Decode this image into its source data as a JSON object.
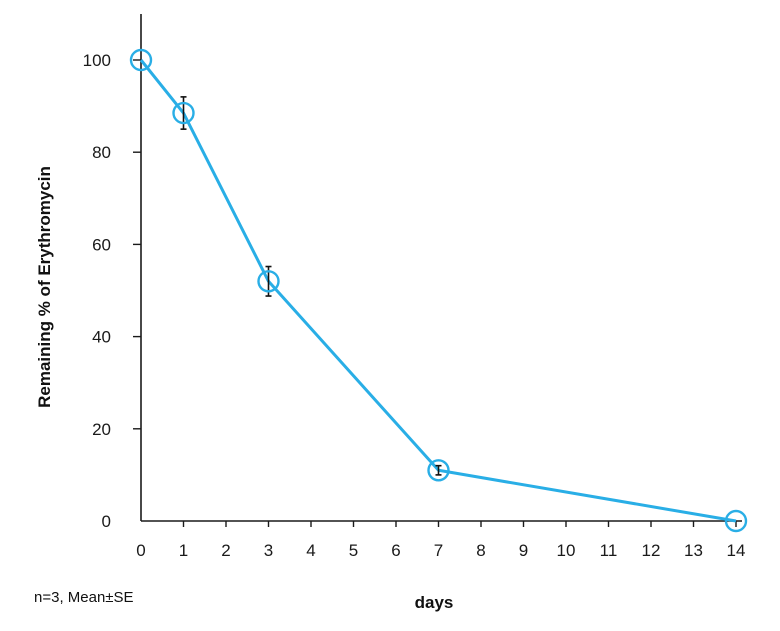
{
  "chart_data": {
    "type": "line",
    "title": "",
    "xlabel": "days",
    "ylabel": "Remaining % of Erythromycin",
    "note": "n=3, Mean±SE",
    "x_ticks": [
      0,
      1,
      2,
      3,
      4,
      5,
      6,
      7,
      8,
      9,
      10,
      11,
      12,
      13,
      14
    ],
    "x_tick_labels": [
      "0",
      "1",
      "2",
      "3",
      "4",
      "5",
      "6",
      "7",
      "8",
      "9",
      "10",
      "11",
      "12",
      "13",
      "14"
    ],
    "y_ticks": [
      0,
      20,
      40,
      60,
      80,
      100
    ],
    "y_tick_labels": [
      "0",
      "20",
      "40",
      "60",
      "80",
      "100"
    ],
    "xlim": [
      0,
      14
    ],
    "ylim": [
      0,
      110
    ],
    "grid": false,
    "series": [
      {
        "name": "Erythromycin",
        "color": "#29aee6",
        "marker": "open-circle",
        "x": [
          0,
          1,
          3,
          7,
          14
        ],
        "y": [
          100,
          88.5,
          52,
          11,
          0
        ],
        "error": [
          0.5,
          3.5,
          3.2,
          1.0,
          0.3
        ]
      }
    ]
  }
}
